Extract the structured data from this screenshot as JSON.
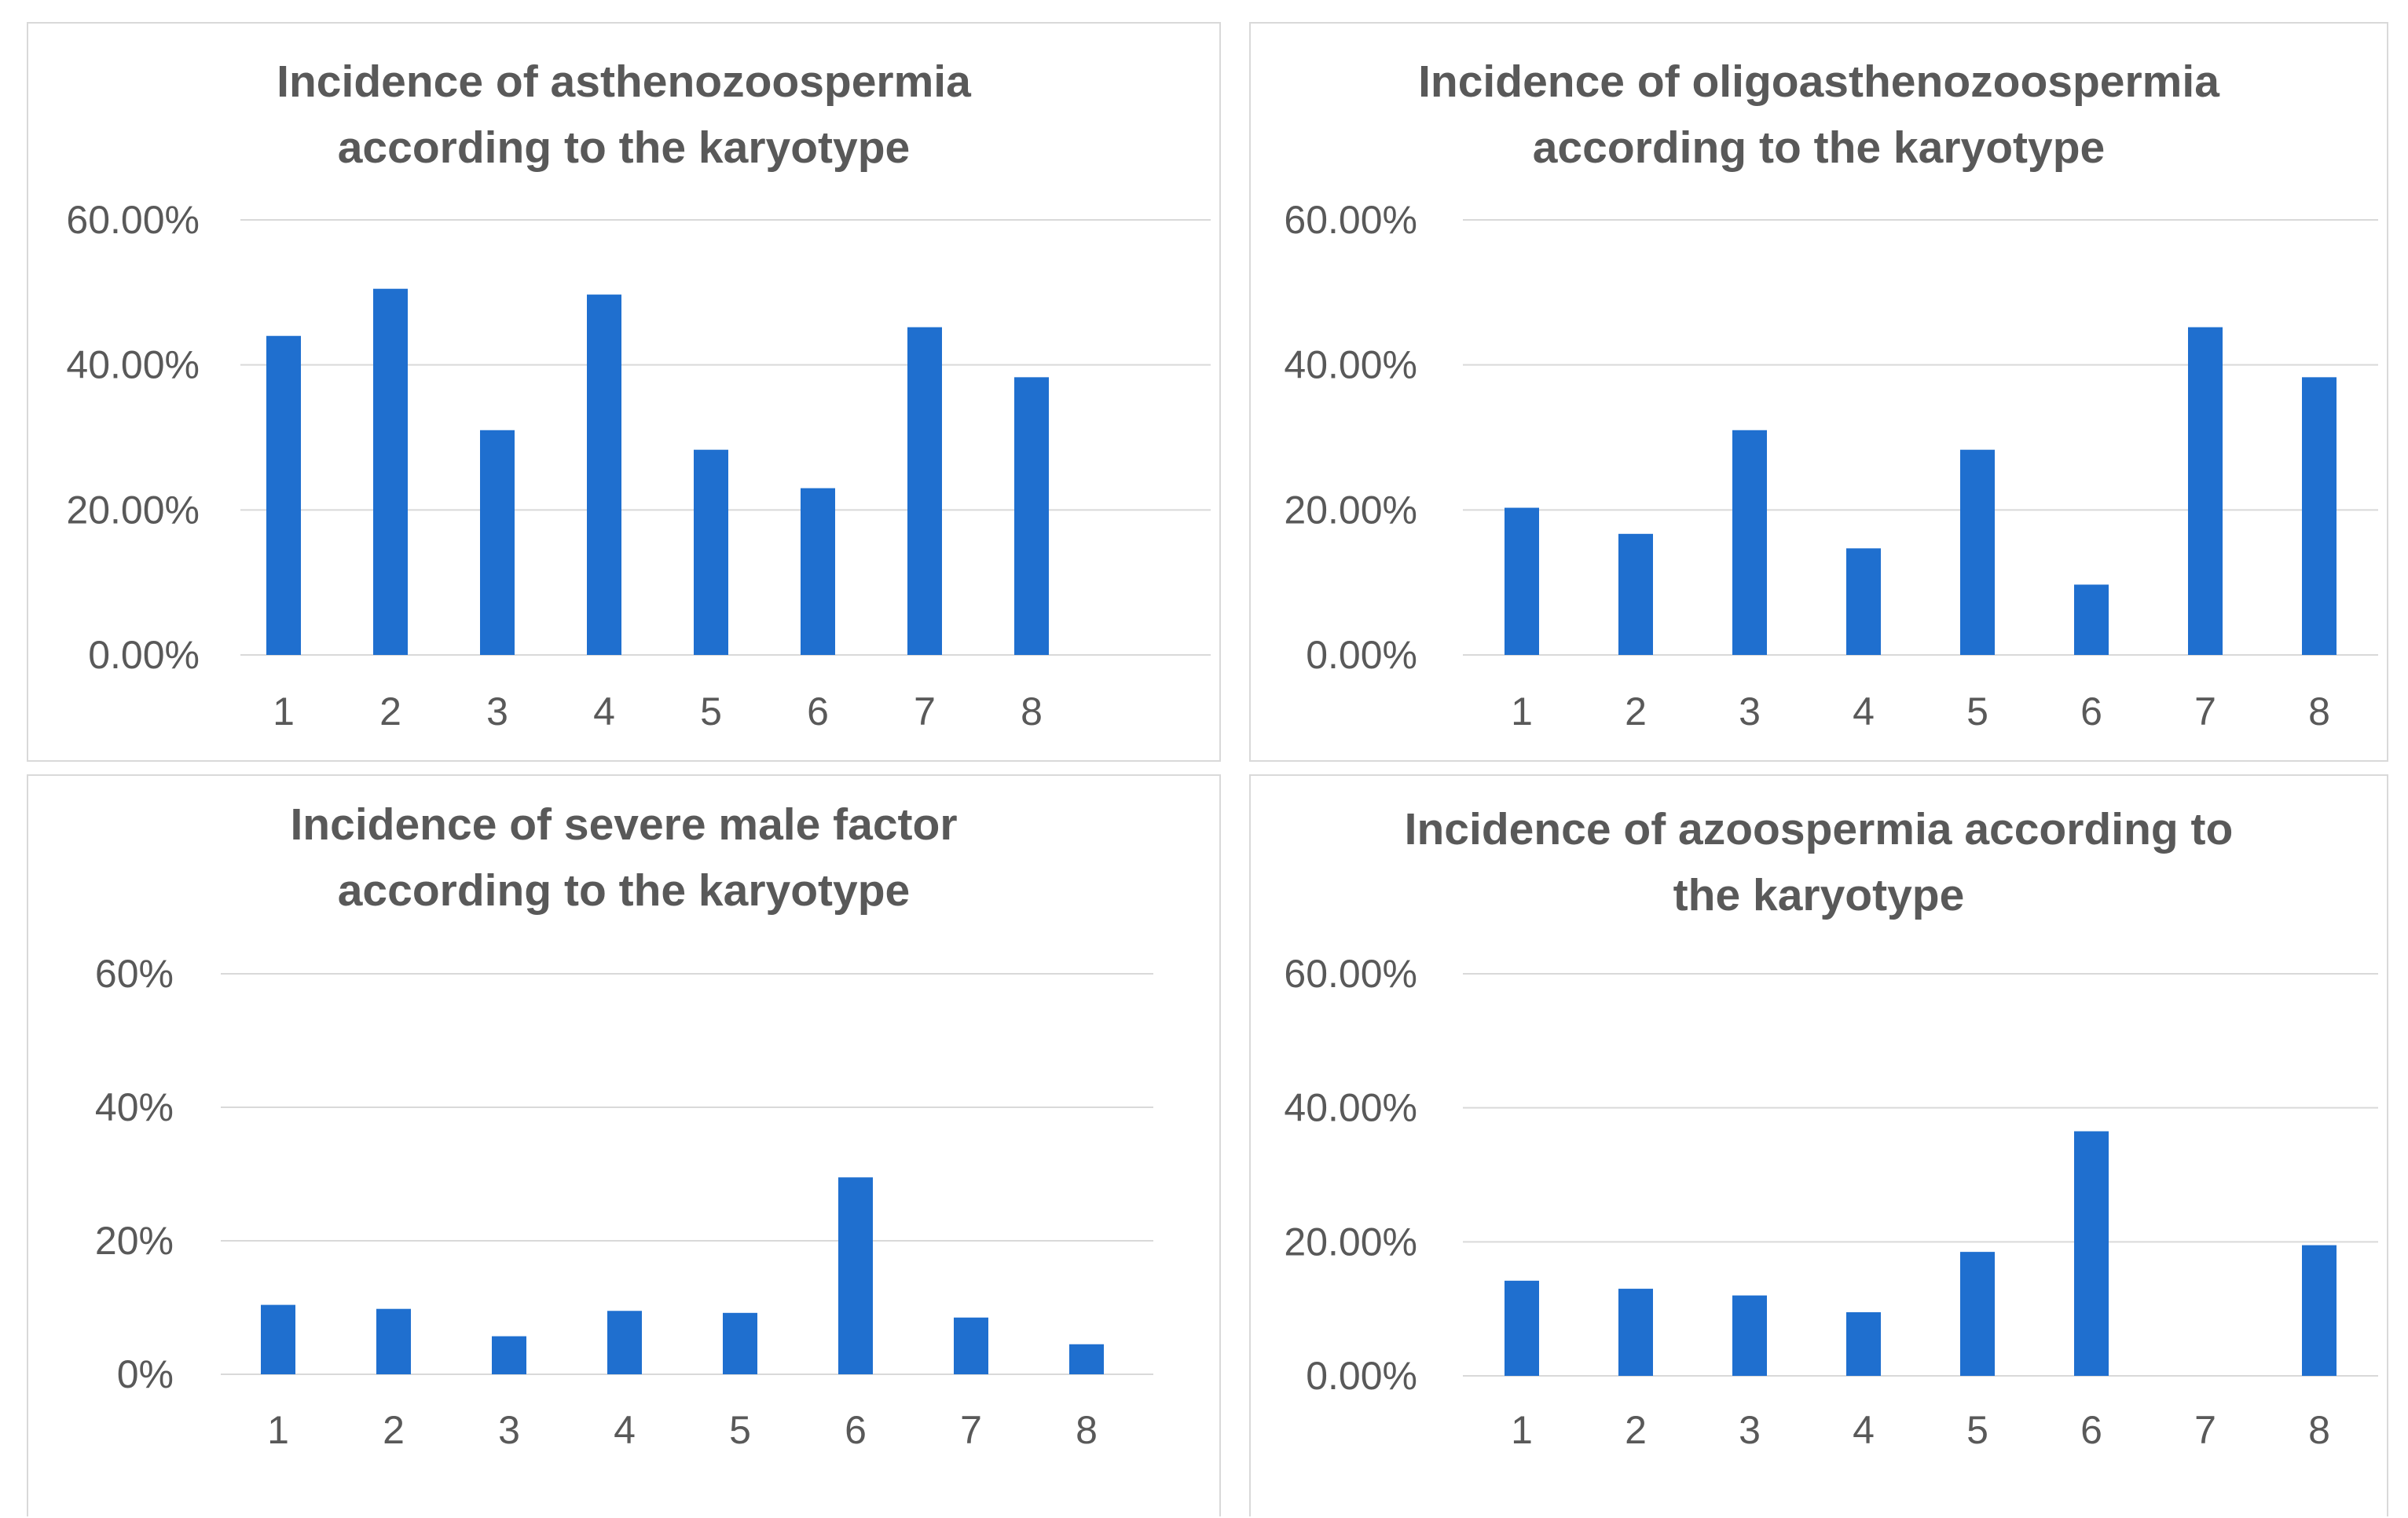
{
  "chart_data": [
    {
      "type": "bar",
      "title": [
        "Incidence of asthenozoospermia",
        "according to the karyotype"
      ],
      "categories": [
        "1",
        "2",
        "3",
        "4",
        "5",
        "6",
        "7",
        "8"
      ],
      "values": [
        0.44,
        0.505,
        0.31,
        0.497,
        0.283,
        0.23,
        0.452,
        0.383
      ],
      "yticks": [
        "0.00%",
        "20.00%",
        "40.00%",
        "60.00%"
      ],
      "ylim": [
        0,
        0.6
      ],
      "bar_color": "#1f6fcf",
      "grid": true,
      "xlabel": "",
      "ylabel": ""
    },
    {
      "type": "bar",
      "title": [
        "Incidence of oligoasthenozoospermia",
        "according to the karyotype"
      ],
      "categories": [
        "1",
        "2",
        "3",
        "4",
        "5",
        "6",
        "7",
        "8"
      ],
      "values": [
        0.203,
        0.167,
        0.31,
        0.147,
        0.283,
        0.097,
        0.452,
        0.383
      ],
      "yticks": [
        "0.00%",
        "20.00%",
        "40.00%",
        "60.00%"
      ],
      "ylim": [
        0,
        0.6
      ],
      "bar_color": "#1f6fcf",
      "grid": true,
      "xlabel": "",
      "ylabel": ""
    },
    {
      "type": "bar",
      "title": [
        "Incidence of severe male factor",
        "according to the karyotype"
      ],
      "categories": [
        "1",
        "2",
        "3",
        "4",
        "5",
        "6",
        "7",
        "8"
      ],
      "values": [
        0.104,
        0.098,
        0.057,
        0.095,
        0.092,
        0.295,
        0.085,
        0.045
      ],
      "yticks": [
        "0%",
        "20%",
        "40%",
        "60%"
      ],
      "ylim": [
        0,
        0.6
      ],
      "bar_color": "#1f6fcf",
      "grid": true,
      "xlabel": "",
      "ylabel": ""
    },
    {
      "type": "bar",
      "title": [
        "Incidence of azoospermia according to",
        "the karyotype"
      ],
      "categories": [
        "1",
        "2",
        "3",
        "4",
        "5",
        "6",
        "7",
        "8"
      ],
      "values": [
        0.142,
        0.13,
        0.12,
        0.095,
        0.185,
        0.365,
        0,
        0.195
      ],
      "yticks": [
        "0.00%",
        "20.00%",
        "40.00%",
        "60.00%"
      ],
      "ylim": [
        0,
        0.6
      ],
      "bar_color": "#1f6fcf",
      "grid": true,
      "xlabel": "",
      "ylabel": ""
    }
  ]
}
